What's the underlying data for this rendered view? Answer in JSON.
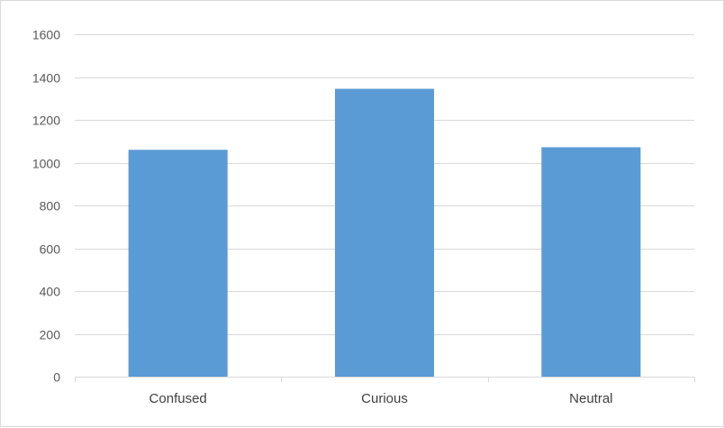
{
  "chart_data": {
    "type": "bar",
    "categories": [
      "Confused",
      "Curious",
      "Neutral"
    ],
    "values": [
      1060,
      1345,
      1072
    ],
    "title": "",
    "xlabel": "",
    "ylabel": "",
    "ylim": [
      0,
      1600
    ],
    "yticks": [
      0,
      200,
      400,
      600,
      800,
      1000,
      1200,
      1400,
      1600
    ],
    "grid": true,
    "legend": "none",
    "bar_color": "#5b9bd5",
    "grid_color": "#d9d9d9"
  }
}
